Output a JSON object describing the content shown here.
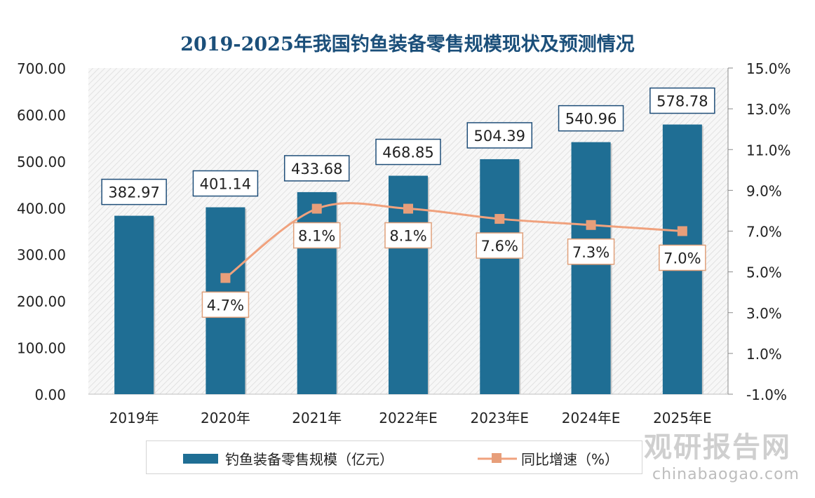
{
  "title": "2019-2025年我国钓鱼装备零售规模现状及预测情况",
  "chart_data": {
    "type": "bar+line",
    "categories": [
      "2019年",
      "2020年",
      "2021年",
      "2022年E",
      "2023年E",
      "2024年E",
      "2025年E"
    ],
    "series": [
      {
        "name": "钓鱼装备零售规模（亿元）",
        "type": "bar",
        "axis": "left",
        "values": [
          382.97,
          401.14,
          433.68,
          468.85,
          504.39,
          540.96,
          578.78
        ],
        "labels": [
          "382.97",
          "401.14",
          "433.68",
          "468.85",
          "504.39",
          "540.96",
          "578.78"
        ]
      },
      {
        "name": "同比增速（%）",
        "type": "line",
        "axis": "right",
        "values": [
          null,
          4.7,
          8.1,
          8.1,
          7.6,
          7.3,
          7.0
        ],
        "labels": [
          null,
          "4.7%",
          "8.1%",
          "8.1%",
          "7.6%",
          "7.3%",
          "7.0%"
        ]
      }
    ],
    "y_left": {
      "min": 0,
      "max": 700,
      "ticks": [
        "0.00",
        "100.00",
        "200.00",
        "300.00",
        "400.00",
        "500.00",
        "600.00",
        "700.00"
      ]
    },
    "y_right": {
      "min": -1,
      "max": 15,
      "ticks": [
        "-1.0%",
        "1.0%",
        "3.0%",
        "5.0%",
        "7.0%",
        "9.0%",
        "11.0%",
        "13.0%",
        "15.0%"
      ]
    },
    "legend_position": "bottom",
    "colors": {
      "bar": "#1f6e94",
      "line": "#f0a27e",
      "marker": "#e79e7a",
      "title": "#1b4f7a"
    }
  },
  "watermark": {
    "name": "观研报告网",
    "url": "chinabaogao.com"
  }
}
